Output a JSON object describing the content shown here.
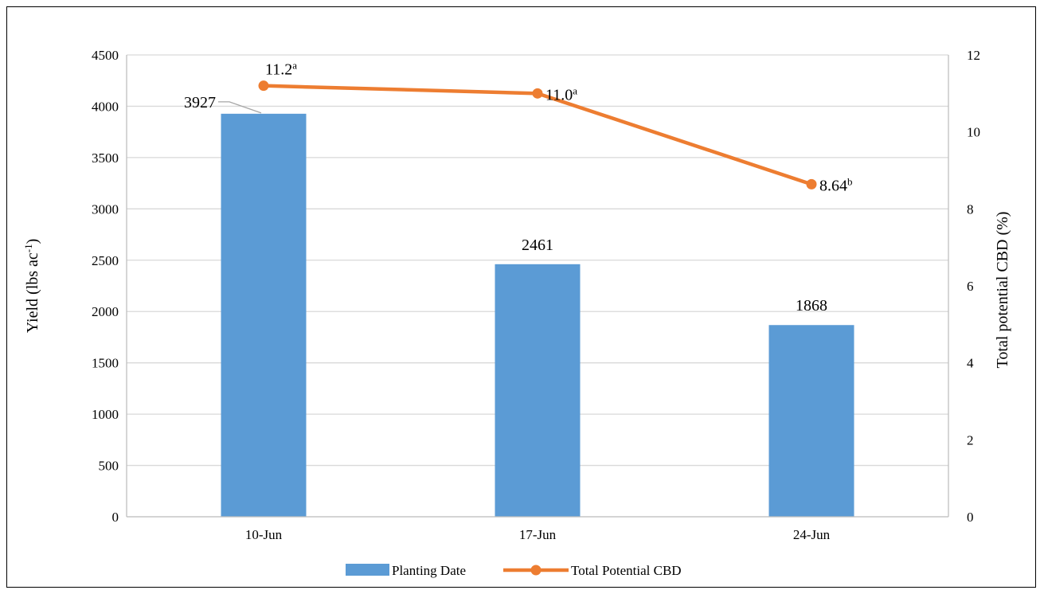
{
  "chart_data": {
    "type": "bar+line",
    "categories": [
      "10-Jun",
      "17-Jun",
      "24-Jun"
    ],
    "series": [
      {
        "name": "Planting Date",
        "kind": "bar",
        "axis": "left",
        "color": "#5B9BD5",
        "values": [
          3927,
          2461,
          1868
        ],
        "labels": [
          "3927",
          "2461",
          "1868"
        ]
      },
      {
        "name": "Total Potential CBD",
        "kind": "line",
        "axis": "right",
        "color": "#ED7D31",
        "values": [
          11.2,
          11.0,
          8.64
        ],
        "labels": [
          {
            "text": "11.2",
            "sup": "a"
          },
          {
            "text": "11.0",
            "sup": "a"
          },
          {
            "text": "8.64",
            "sup": "b"
          }
        ]
      }
    ],
    "y_left": {
      "label": "Yield (lbs ac",
      "label_sup": "-1",
      "label_end": ")",
      "ylim": [
        0,
        4500
      ],
      "ticks": [
        "0",
        "500",
        "1000",
        "1500",
        "2000",
        "2500",
        "3000",
        "3500",
        "4000",
        "4500"
      ]
    },
    "y_right": {
      "label": "Total potential CBD (%)",
      "ylim": [
        0,
        12
      ],
      "ticks": [
        "0",
        "2",
        "4",
        "6",
        "8",
        "10",
        "12"
      ]
    },
    "grid": true,
    "legend_position": "bottom",
    "legend": [
      "Planting Date",
      "Total Potential CBD"
    ]
  }
}
